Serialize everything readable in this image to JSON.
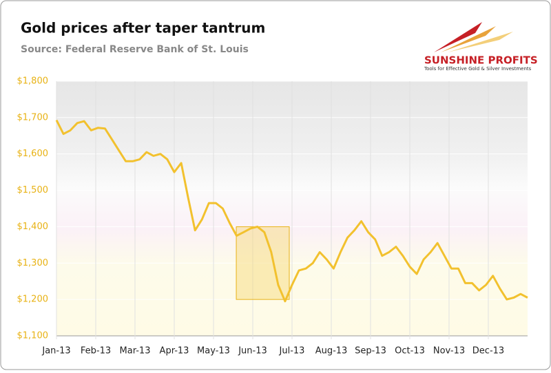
{
  "chart_data": {
    "type": "line",
    "title": "Gold prices after taper tantrum",
    "subtitle": "Source: Federal Reserve Bank of St. Louis",
    "logo": {
      "name": "SUNSHINE PROFITS",
      "tagline": "Tools for Effective Gold & Silver Investments"
    },
    "xlim": [
      0,
      12
    ],
    "xticks": [
      {
        "value": 0,
        "label": "Jan-13"
      },
      {
        "value": 1,
        "label": "Feb-13"
      },
      {
        "value": 2,
        "label": "Mar-13"
      },
      {
        "value": 3,
        "label": "Apr-13"
      },
      {
        "value": 4,
        "label": "May-13"
      },
      {
        "value": 5,
        "label": "Jun-13"
      },
      {
        "value": 6,
        "label": "Jul-13"
      },
      {
        "value": 7,
        "label": "Aug-13"
      },
      {
        "value": 8,
        "label": "Sep-13"
      },
      {
        "value": 9,
        "label": "Oct-13"
      },
      {
        "value": 10,
        "label": "Nov-13"
      },
      {
        "value": 11,
        "label": "Dec-13"
      }
    ],
    "ylim": [
      1100,
      1800
    ],
    "yticks": [
      {
        "value": 1100,
        "label": "$1,100"
      },
      {
        "value": 1200,
        "label": "$1,200"
      },
      {
        "value": 1300,
        "label": "$1,300"
      },
      {
        "value": 1400,
        "label": "$1,400"
      },
      {
        "value": 1500,
        "label": "$1,500"
      },
      {
        "value": 1600,
        "label": "$1,600"
      },
      {
        "value": 1700,
        "label": "$1,700"
      },
      {
        "value": 1800,
        "label": "$1,800"
      }
    ],
    "color": "#f2c12e",
    "highlight": {
      "xlim": [
        4.58,
        5.93
      ],
      "ylim": [
        1200,
        1400
      ],
      "color": "#f7d774"
    },
    "values": [
      1693,
      1655,
      1665,
      1685,
      1690,
      1665,
      1672,
      1670,
      1640,
      1610,
      1580,
      1580,
      1585,
      1605,
      1595,
      1600,
      1585,
      1550,
      1575,
      1480,
      1390,
      1420,
      1465,
      1465,
      1450,
      1410,
      1375,
      1385,
      1395,
      1400,
      1385,
      1330,
      1240,
      1195,
      1240,
      1280,
      1285,
      1300,
      1330,
      1310,
      1285,
      1330,
      1370,
      1390,
      1415,
      1385,
      1365,
      1320,
      1330,
      1345,
      1320,
      1290,
      1270,
      1310,
      1330,
      1355,
      1320,
      1285,
      1285,
      1245,
      1245,
      1225,
      1240,
      1265,
      1230,
      1200,
      1205,
      1215,
      1205
    ]
  }
}
